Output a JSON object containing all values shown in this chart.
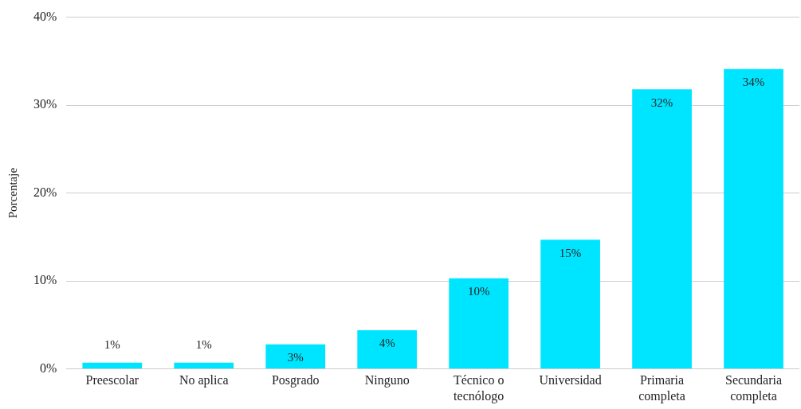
{
  "chart_data": {
    "type": "bar",
    "ylabel": "Porcentaje",
    "categories": [
      "Preescolar",
      "No aplica",
      "Posgrado",
      "Ninguno",
      "Técnico o tecnólogo",
      "Universidad",
      "Primaria completa",
      "Secundaria completa"
    ],
    "values": [
      0.7,
      0.7,
      2.8,
      4.4,
      10.3,
      14.7,
      31.8,
      34.1
    ],
    "value_labels": [
      "1%",
      "1%",
      "3%",
      "4%",
      "10%",
      "15%",
      "32%",
      "34%"
    ],
    "color": "#00e5ff",
    "ylim": [
      0,
      40
    ],
    "yticks": [
      {
        "value": 0,
        "label": "0%"
      },
      {
        "value": 10,
        "label": "10%"
      },
      {
        "value": 20,
        "label": "20%"
      },
      {
        "value": 30,
        "label": "30%"
      },
      {
        "value": 40,
        "label": "40%"
      }
    ],
    "grid": "y"
  }
}
